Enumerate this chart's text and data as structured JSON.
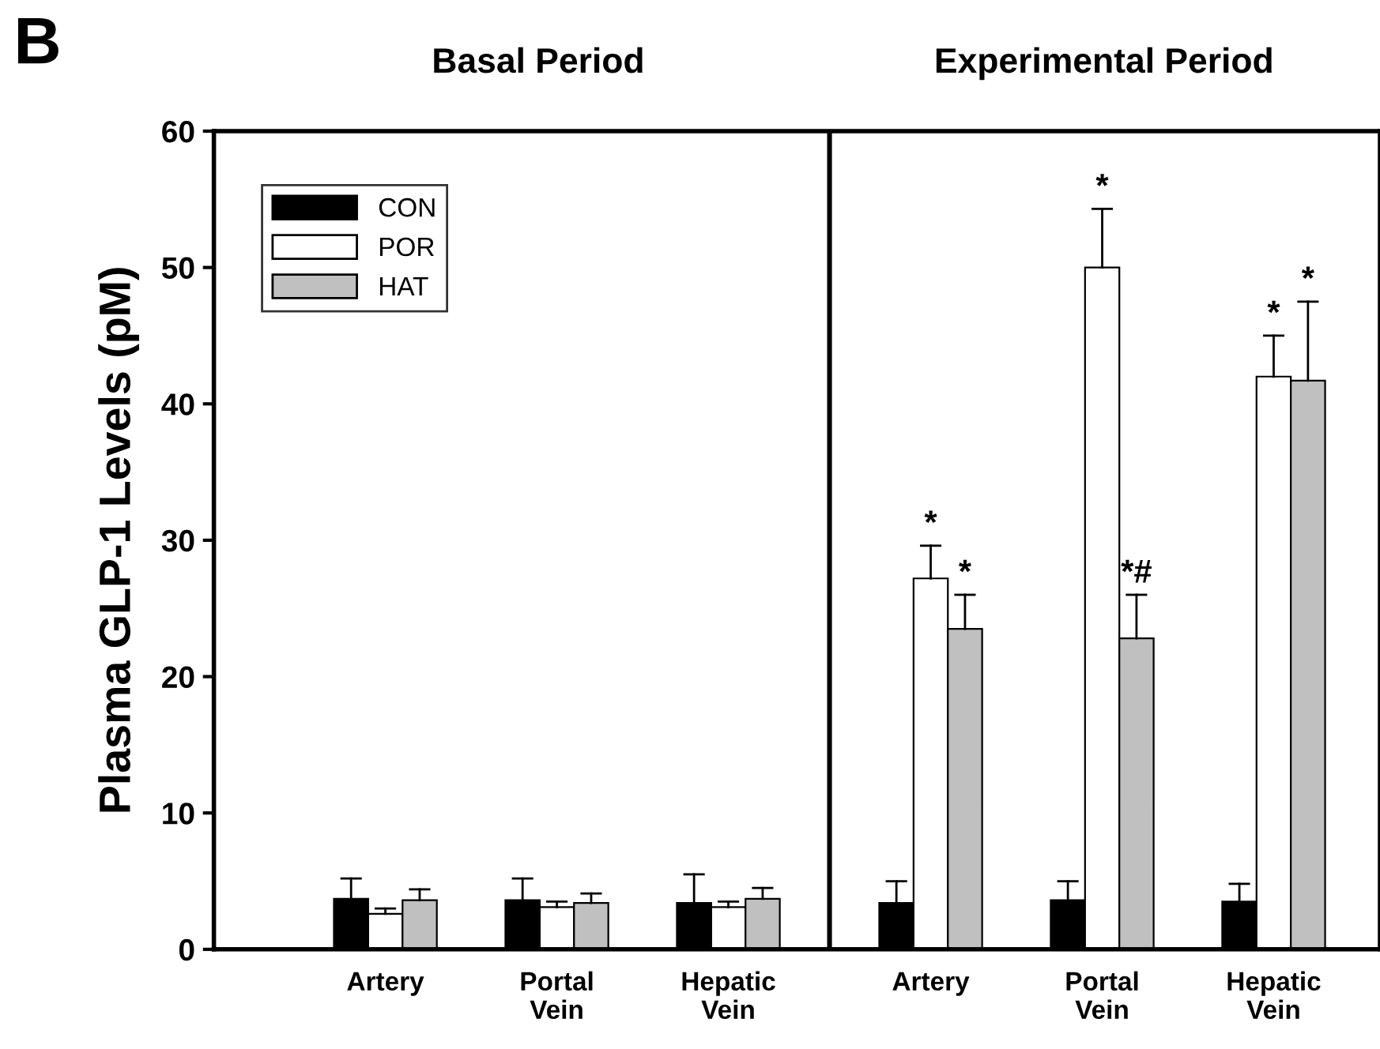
{
  "chart_data": {
    "type": "bar",
    "ylabel": "Plasma GLP-1 Levels (pM)",
    "annotations": [
      "B",
      "Basal Period",
      "Experimental Period"
    ],
    "categories": [
      "Artery",
      "Portal\nVein",
      "Hepatic\nVein",
      "Artery",
      "Portal\nVein",
      "Hepatic\nVein"
    ],
    "series": [
      {
        "name": "CON",
        "color": "#000000",
        "values": [
          3.7,
          3.6,
          3.4,
          3.4,
          3.6,
          3.5
        ],
        "errors": [
          [
            3.7,
            5.2
          ],
          [
            3.6,
            5.2
          ],
          [
            3.4,
            5.5
          ],
          [
            3.4,
            5.0
          ],
          [
            3.6,
            5.0
          ],
          [
            3.5,
            4.8
          ]
        ]
      },
      {
        "name": "POR",
        "color": "#ffffff",
        "values": [
          2.6,
          3.1,
          3.1,
          27.2,
          50.0,
          42.0
        ],
        "errors": [
          [
            2.6,
            3.0
          ],
          [
            3.1,
            3.5
          ],
          [
            3.1,
            3.5
          ],
          [
            27.2,
            29.6
          ],
          [
            50.0,
            54.3
          ],
          [
            42.0,
            45.0
          ]
        ],
        "value_labels": [
          null,
          null,
          null,
          "*",
          "*",
          "*"
        ]
      },
      {
        "name": "HAT",
        "color": "#c0c0c0",
        "values": [
          3.6,
          3.4,
          3.7,
          23.5,
          22.8,
          41.7
        ],
        "errors": [
          [
            3.6,
            4.4
          ],
          [
            3.4,
            4.1
          ],
          [
            3.7,
            4.5
          ],
          [
            23.5,
            26.0
          ],
          [
            22.8,
            26.0
          ],
          [
            41.7,
            47.5
          ]
        ],
        "value_labels": [
          null,
          null,
          null,
          "*",
          "*#",
          "*"
        ]
      }
    ],
    "ylim": [
      0,
      60
    ],
    "yticks": [
      0,
      10,
      20,
      30,
      40,
      50,
      60
    ],
    "grid": false,
    "legend": "top left"
  }
}
